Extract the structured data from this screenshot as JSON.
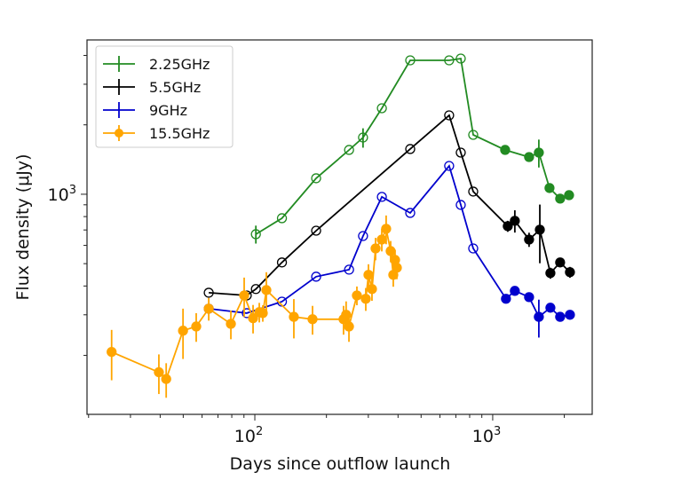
{
  "chart_data": {
    "type": "scatter",
    "xlabel": "Days since outflow launch",
    "ylabel": "Flux density (μJy)",
    "xscale": "log",
    "yscale": "log",
    "xlim": [
      19.7,
      2620
    ],
    "ylim": [
      111,
      4670
    ],
    "x_ticks": [
      {
        "value": 100,
        "label": "10",
        "exp": "2"
      },
      {
        "value": 1000,
        "label": "10",
        "exp": "3"
      }
    ],
    "y_ticks": [
      {
        "value": 1000,
        "label": "10",
        "exp": "3"
      }
    ],
    "grid": false,
    "legend_position": "top-left",
    "series": [
      {
        "name": "2.25GHz",
        "color": "#228b22",
        "marker": "plus",
        "x": [
          101,
          130,
          181,
          249,
          285,
          342,
          450,
          656,
          734,
          828,
          1128,
          1422,
          1563,
          1733,
          1921,
          2094
        ],
        "y": [
          671,
          787,
          1173,
          1557,
          1762,
          2361,
          3809,
          3809,
          3877,
          1810,
          1557,
          1450,
          1516,
          1064,
          957,
          991
        ],
        "err": [
          60,
          0,
          0,
          0,
          170,
          0,
          0,
          0,
          0,
          0,
          0,
          0,
          210,
          0,
          0,
          0
        ],
        "filled": [
          false,
          false,
          false,
          false,
          false,
          false,
          false,
          false,
          false,
          false,
          true,
          true,
          true,
          true,
          true,
          true
        ]
      },
      {
        "name": "5.5GHz",
        "color": "#000000",
        "marker": "plus",
        "x": [
          64,
          92.5,
          101,
          130,
          181,
          450,
          656,
          734,
          828,
          1157,
          1239,
          1422,
          1578,
          1748,
          1921,
          2112
        ],
        "y": [
          374,
          364,
          388,
          506,
          695,
          1571,
          2199,
          1516,
          1027,
          727,
          767,
          636,
          702,
          455,
          506,
          459
        ],
        "err": [
          0,
          0,
          0,
          0,
          0,
          0,
          0,
          0,
          0,
          40,
          85,
          45,
          200,
          25,
          20,
          25
        ],
        "filled": [
          false,
          false,
          false,
          false,
          false,
          false,
          false,
          false,
          false,
          true,
          true,
          true,
          true,
          true,
          true,
          true
        ]
      },
      {
        "name": "9GHz",
        "color": "#0000cd",
        "marker": "plus",
        "x": [
          64,
          92.5,
          130,
          181,
          249,
          285,
          342,
          450,
          656,
          734,
          828,
          1137,
          1239,
          1422,
          1563,
          1748,
          1921,
          2112
        ],
        "y": [
          319,
          305,
          342,
          439,
          471,
          659,
          974,
          830,
          1327,
          899,
          582,
          352,
          381,
          358,
          294,
          322,
          294,
          300
        ],
        "err": [
          0,
          0,
          0,
          0,
          0,
          0,
          0,
          0,
          0,
          0,
          0,
          0,
          0,
          0,
          55,
          0,
          0,
          0
        ],
        "filled": [
          false,
          false,
          false,
          false,
          false,
          false,
          false,
          false,
          false,
          false,
          false,
          true,
          true,
          true,
          true,
          true,
          true,
          true
        ]
      },
      {
        "name": "15.5GHz",
        "color": "#ffa500",
        "marker": "dot",
        "x": [
          25,
          39.5,
          42.4,
          49.9,
          56.7,
          64,
          79.3,
          90.2,
          98.3,
          104.4,
          108,
          111.8,
          145.9,
          174.8,
          236,
          242,
          248.7,
          268.6,
          292.7,
          300.4,
          310.8,
          321.8,
          341.8,
          356.5,
          372.4,
          382,
          388.6,
          395.4
        ],
        "y": [
          207,
          169,
          158,
          256,
          267,
          319,
          274,
          364,
          290,
          308,
          305,
          384,
          294,
          287,
          287,
          300,
          267,
          364,
          352,
          447,
          388,
          582,
          636,
          708,
          567,
          447,
          519,
          480
        ],
        "err": [
          51,
          33,
          27,
          63,
          38,
          36,
          39,
          71,
          41,
          30,
          25,
          75,
          57,
          41,
          41,
          43,
          38,
          34,
          40,
          50,
          43,
          65,
          71,
          101,
          60,
          50,
          55,
          52
        ],
        "filled": [
          true,
          true,
          true,
          true,
          true,
          true,
          true,
          true,
          true,
          true,
          true,
          true,
          true,
          true,
          true,
          true,
          true,
          true,
          true,
          true,
          true,
          true,
          true,
          true,
          true,
          true,
          true,
          true
        ]
      }
    ]
  }
}
